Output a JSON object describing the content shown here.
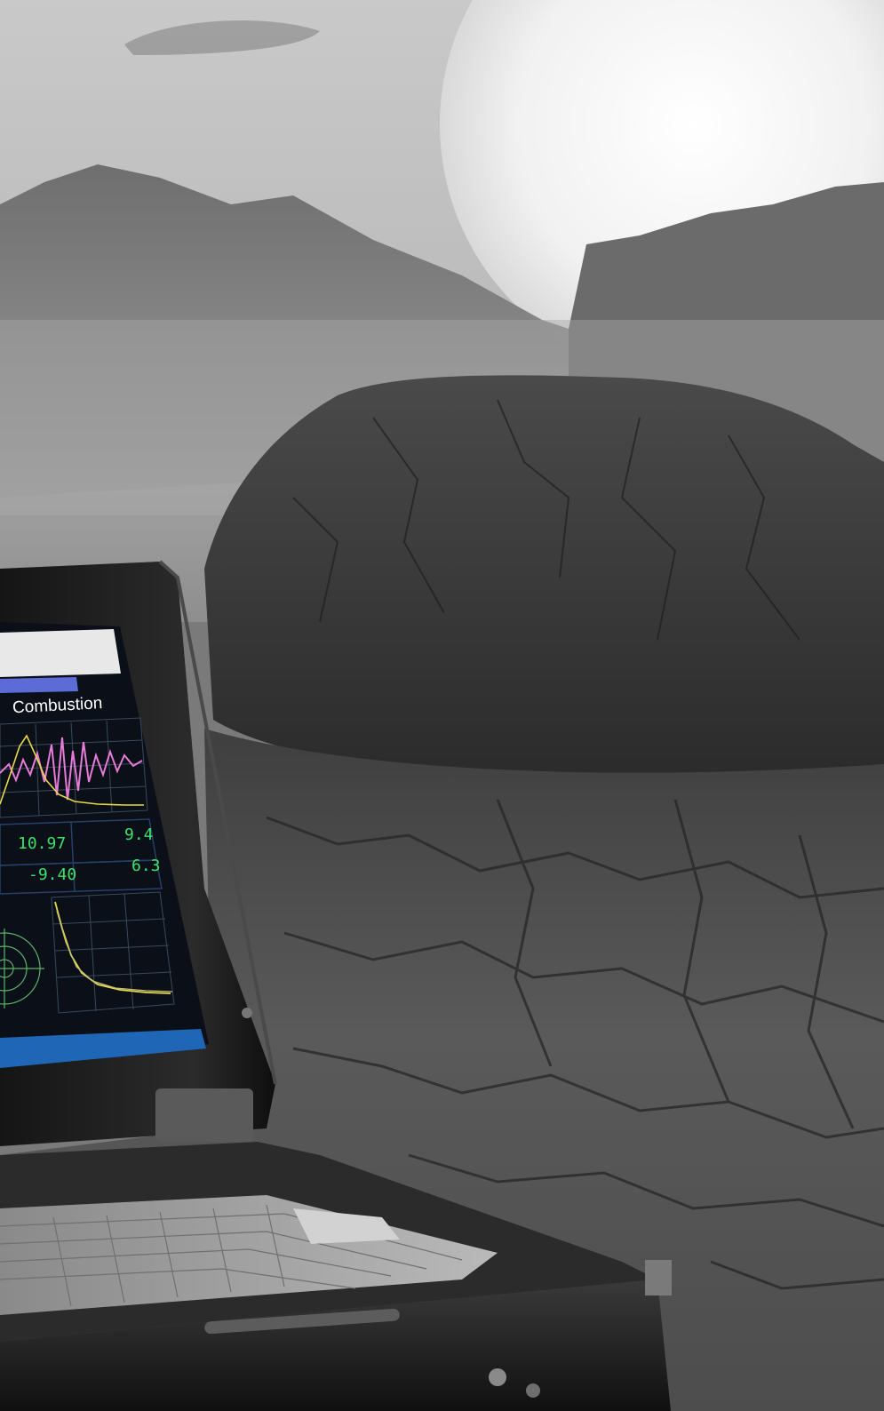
{
  "screen": {
    "panel_title": "Combustion",
    "readouts": [
      {
        "value": "10.97"
      },
      {
        "value": "9.4"
      },
      {
        "value": "-9.40"
      },
      {
        "value": "6.3"
      }
    ]
  },
  "colors": {
    "sky_top": "#b7b7b7",
    "sun": "#f3f3f3",
    "rock": "#3a3a3a",
    "ground": "#4a4a4a",
    "screen_bg": "#0a0f18",
    "trace_pink": "#e67bd9",
    "trace_yellow": "#e8d84a",
    "readout_green": "#39e36a",
    "titlebar_blue": "#1f66b6"
  }
}
